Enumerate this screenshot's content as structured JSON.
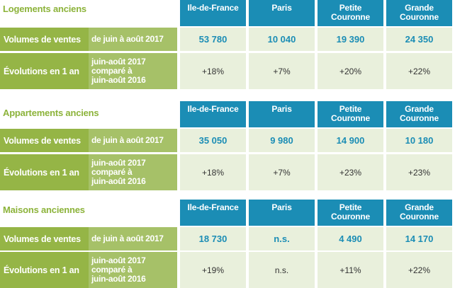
{
  "columns": [
    "Ile-de-France",
    "Paris",
    "Petite\nCouronne",
    "Grande\nCouronne"
  ],
  "row_labels": {
    "volumes": "Volumes de ventes",
    "volumes_period": "de juin à août 2017",
    "evolutions": "Évolutions en 1 an",
    "evolutions_period": "juin-août 2017\ncomparé à\njuin-août 2016"
  },
  "sections": [
    {
      "title": "Logements anciens",
      "volumes": [
        "53 780",
        "10 040",
        "19 390",
        "24 350"
      ],
      "evolutions": [
        "+18%",
        "+7%",
        "+20%",
        "+22%"
      ]
    },
    {
      "title": "Appartements anciens",
      "volumes": [
        "35 050",
        "9 980",
        "14 900",
        "10 180"
      ],
      "evolutions": [
        "+18%",
        "+7%",
        "+23%",
        "+23%"
      ]
    },
    {
      "title": "Maisons anciennes",
      "volumes": [
        "18 730",
        "n.s.",
        "4 490",
        "14 170"
      ],
      "evolutions": [
        "+19%",
        "n.s.",
        "+11%",
        "+22%"
      ]
    }
  ],
  "colors": {
    "header_blue": "#1b8db5",
    "label_green": "#95b546",
    "label_green_light": "#a6c168",
    "cell_bg": "#e9f0dc",
    "title_green": "#8cb33a"
  }
}
